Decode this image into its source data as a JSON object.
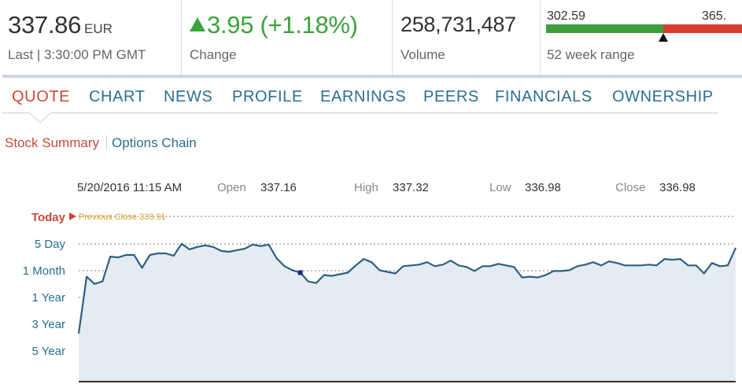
{
  "quote": {
    "price": "337.86",
    "currency": "EUR",
    "last_time": "Last | 3:30:00 PM GMT",
    "change": "3.95 (+1.18%)",
    "change_label": "Change",
    "volume": "258,731,487",
    "volume_label": "Volume",
    "range_low": "302.59",
    "range_high": "365.",
    "range_label": "52 week range",
    "range_position": 0.6,
    "colors": {
      "up": "#3ba33b",
      "range_low_bar": "#3c9e3c",
      "range_high_bar": "#d63b2f"
    }
  },
  "tabs": [
    {
      "label": "QUOTE",
      "active": true
    },
    {
      "label": "CHART"
    },
    {
      "label": "NEWS"
    },
    {
      "label": "PROFILE"
    },
    {
      "label": "EARNINGS"
    },
    {
      "label": "PEERS"
    },
    {
      "label": "FINANCIALS"
    },
    {
      "label": "OWNERSHIP"
    }
  ],
  "subnav": {
    "summary": "Stock Summary",
    "options": "Options Chain"
  },
  "ohlc": {
    "datetime": "5/20/2016 11:15 AM",
    "open_label": "Open",
    "open": "337.16",
    "high_label": "High",
    "high": "337.32",
    "low_label": "Low",
    "low": "336.98",
    "close_label": "Close",
    "close": "336.98"
  },
  "ranges": [
    "Today",
    "5 Day",
    "1 Month",
    "1 Year",
    "3 Year",
    "5 Year"
  ],
  "active_range": "Today",
  "previous_close": "Previous Close 333.91",
  "chart_data": {
    "type": "area",
    "title": "",
    "line_color": "#2e5f82",
    "fill_color": "#e4ecf2",
    "hover_index": 28,
    "values": [
      0.0,
      0.71,
      0.62,
      0.65,
      0.96,
      0.95,
      0.98,
      0.98,
      0.82,
      0.98,
      1.0,
      1.0,
      0.97,
      1.12,
      1.05,
      1.08,
      1.1,
      1.08,
      1.03,
      1.02,
      1.04,
      1.06,
      1.11,
      1.09,
      1.11,
      0.94,
      0.84,
      0.79,
      0.76,
      0.65,
      0.63,
      0.73,
      0.72,
      0.74,
      0.76,
      0.85,
      0.93,
      0.89,
      0.79,
      0.77,
      0.75,
      0.84,
      0.85,
      0.86,
      0.89,
      0.84,
      0.86,
      0.91,
      0.85,
      0.83,
      0.78,
      0.84,
      0.84,
      0.87,
      0.85,
      0.83,
      0.7,
      0.71,
      0.7,
      0.73,
      0.78,
      0.78,
      0.79,
      0.84,
      0.86,
      0.89,
      0.85,
      0.9,
      0.88,
      0.85,
      0.85,
      0.85,
      0.86,
      0.85,
      0.93,
      0.92,
      0.93,
      0.85,
      0.85,
      0.75,
      0.88,
      0.84,
      0.85,
      1.07
    ]
  }
}
